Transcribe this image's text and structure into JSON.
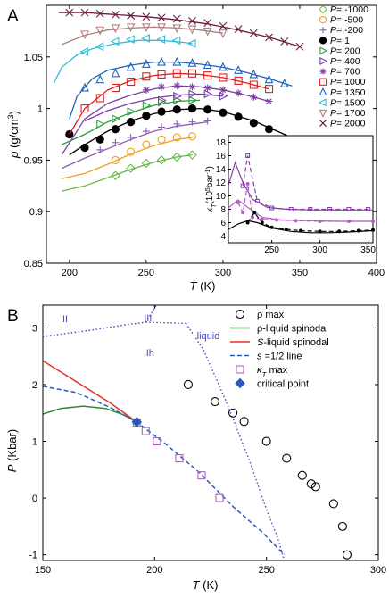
{
  "colors": {
    "axis": "#000000",
    "P_m1000": "#66bb44",
    "P_m500": "#f0a020",
    "P_m200": "#8a5db8",
    "P_1": "#000000",
    "P_200": "#2e9e3e",
    "P_400": "#7c3da8",
    "P_700": "#7b3fa0",
    "P_1000": "#e02020",
    "P_1350": "#1f64b8",
    "P_1500": "#33bfd6",
    "P_1700": "#b08080",
    "P_2000": "#6a1a40",
    "B_rhoSpinodal": "#2e8b2e",
    "B_SSpinodal": "#e8312a",
    "B_halfLine": "#2a5bb8",
    "B_kappa": "#b060c0",
    "B_critical": "#2a5bb8",
    "B_phase": "#4a4ab0",
    "inset_k1": "#000000",
    "inset_k2": "#b060c0",
    "inset_k3": "#8040a8"
  },
  "chart_data": [
    {
      "panel_label": "A",
      "type": "line",
      "xlabel": "T",
      "xunit": " (K)",
      "ylabel": "ρ",
      "yunit": " (g/cm",
      "yunit_sup": "3",
      "yunit_end": ")",
      "xlim": [
        185,
        400
      ],
      "ylim": [
        0.85,
        1.1
      ],
      "xticks": [
        200,
        250,
        300,
        350,
        400
      ],
      "yticks": [
        0.85,
        0.9,
        0.95,
        1,
        1.05
      ],
      "ytick_labels": [
        "0.85",
        "0.9",
        "0.95",
        "1",
        "1.05"
      ],
      "legend_position": "right",
      "series": [
        {
          "name": "P= -1000",
          "key": "P_m1000",
          "marker": "diamond",
          "x": [
            230,
            240,
            250,
            260,
            270,
            280
          ],
          "y": [
            0.935,
            0.942,
            0.947,
            0.95,
            0.953,
            0.955
          ],
          "line_x": [
            195,
            210,
            225,
            240,
            255,
            270,
            280
          ],
          "line_y": [
            0.92,
            0.925,
            0.933,
            0.941,
            0.948,
            0.953,
            0.955
          ]
        },
        {
          "name": "P= -500",
          "key": "P_m500",
          "marker": "circle-open",
          "x": [
            230,
            240,
            250,
            260,
            270,
            280
          ],
          "y": [
            0.95,
            0.958,
            0.965,
            0.97,
            0.972,
            0.973
          ],
          "line_x": [
            195,
            210,
            225,
            240,
            255,
            270,
            280
          ],
          "line_y": [
            0.932,
            0.937,
            0.946,
            0.956,
            0.964,
            0.97,
            0.972
          ]
        },
        {
          "name": "P= -200",
          "key": "P_m200",
          "marker": "plus",
          "x": [
            220,
            230,
            240,
            250,
            260,
            270,
            280,
            290
          ],
          "y": [
            0.96,
            0.967,
            0.972,
            0.978,
            0.982,
            0.985,
            0.987,
            0.988
          ],
          "line_x": [
            195,
            210,
            225,
            240,
            255,
            270,
            285,
            290
          ],
          "line_y": [
            0.942,
            0.952,
            0.961,
            0.97,
            0.978,
            0.983,
            0.986,
            0.987
          ]
        },
        {
          "name": "P= 1",
          "key": "P_1",
          "marker": "circle-filled",
          "x": [
            200,
            210,
            220,
            230,
            240,
            250,
            260,
            270,
            280,
            290,
            300,
            310,
            320,
            330
          ],
          "y": [
            0.975,
            0.962,
            0.97,
            0.98,
            0.987,
            0.993,
            0.997,
            0.999,
            1.0,
            0.999,
            0.996,
            0.992,
            0.986,
            0.98
          ],
          "line_x": [
            200,
            210,
            225,
            240,
            255,
            270,
            285,
            300,
            320,
            340,
            350
          ],
          "line_y": [
            0.955,
            0.965,
            0.978,
            0.988,
            0.995,
            0.999,
            1.0,
            0.997,
            0.988,
            0.975,
            0.968
          ]
        },
        {
          "name": "P= 200",
          "key": "P_200",
          "marker": "triangle-right",
          "x": [
            220,
            230,
            240,
            250,
            260,
            270,
            280
          ],
          "y": [
            0.985,
            0.99,
            0.997,
            1.003,
            1.006,
            1.008,
            1.008
          ],
          "line_x": [
            195,
            210,
            225,
            240,
            255,
            270,
            285
          ],
          "line_y": [
            0.965,
            0.975,
            0.987,
            0.996,
            1.003,
            1.007,
            1.008
          ]
        },
        {
          "name": "P= 400",
          "key": "P_400",
          "marker": "triangle-right",
          "x": [
            260,
            270,
            280,
            290,
            300
          ],
          "y": [
            1.008,
            1.012,
            1.014,
            1.014,
            1.012
          ],
          "line_x": [
            210,
            225,
            240,
            255,
            270,
            285,
            300
          ],
          "line_y": [
            0.988,
            0.998,
            1.005,
            1.01,
            1.013,
            1.014,
            1.012
          ]
        },
        {
          "name": "P= 700",
          "key": "P_700",
          "marker": "asterisk",
          "x": [
            250,
            260,
            270,
            280,
            290,
            300,
            310,
            320,
            330
          ],
          "y": [
            1.018,
            1.021,
            1.022,
            1.021,
            1.02,
            1.018,
            1.015,
            1.011,
            1.007
          ],
          "line_x": [
            195,
            210,
            225,
            240,
            255,
            270,
            285,
            300,
            315,
            330
          ],
          "line_y": [
            0.955,
            0.99,
            1.005,
            1.013,
            1.019,
            1.022,
            1.021,
            1.018,
            1.013,
            1.007
          ]
        },
        {
          "name": "P= 1000",
          "key": "P_1000",
          "marker": "square",
          "x": [
            210,
            220,
            230,
            240,
            250,
            260,
            270,
            280,
            290,
            300,
            310,
            320,
            330
          ],
          "y": [
            1.0,
            1.01,
            1.02,
            1.026,
            1.031,
            1.033,
            1.034,
            1.034,
            1.032,
            1.03,
            1.027,
            1.023,
            1.019
          ],
          "line_x": [
            200,
            210,
            225,
            240,
            255,
            270,
            285,
            300,
            315,
            330
          ],
          "line_y": [
            0.975,
            1.0,
            1.018,
            1.027,
            1.032,
            1.034,
            1.033,
            1.03,
            1.025,
            1.019
          ]
        },
        {
          "name": "P= 1350",
          "key": "P_1350",
          "marker": "triangle-up",
          "x": [
            210,
            220,
            230,
            240,
            250,
            260,
            270,
            280,
            290,
            300,
            310,
            320,
            330,
            340
          ],
          "y": [
            1.02,
            1.028,
            1.034,
            1.04,
            1.043,
            1.045,
            1.045,
            1.044,
            1.042,
            1.04,
            1.037,
            1.033,
            1.028,
            1.024
          ],
          "line_x": [
            200,
            205,
            215,
            225,
            240,
            255,
            270,
            285,
            300,
            315,
            330,
            345
          ],
          "line_y": [
            0.99,
            1.012,
            1.029,
            1.037,
            1.042,
            1.045,
            1.045,
            1.043,
            1.04,
            1.035,
            1.029,
            1.022
          ]
        },
        {
          "name": "P= 1500",
          "key": "P_1500",
          "marker": "triangle-left",
          "x": [
            210,
            220,
            230,
            240,
            250,
            260,
            270,
            280
          ],
          "y": [
            1.055,
            1.06,
            1.065,
            1.067,
            1.068,
            1.067,
            1.066,
            1.063
          ],
          "line_x": [
            190,
            195,
            205,
            215,
            230,
            245,
            260,
            275,
            280
          ],
          "line_y": [
            1.025,
            1.04,
            1.052,
            1.058,
            1.063,
            1.066,
            1.066,
            1.064,
            1.063
          ]
        },
        {
          "name": "P= 1700",
          "key": "P_1700",
          "marker": "triangle-down",
          "x": [
            210,
            220,
            230,
            240,
            250,
            260,
            270,
            280,
            290,
            300
          ],
          "y": [
            1.072,
            1.076,
            1.078,
            1.079,
            1.079,
            1.079,
            1.078,
            1.077,
            1.075,
            1.073
          ],
          "line_x": [
            195,
            210,
            225,
            240,
            255,
            270,
            285,
            300
          ],
          "line_y": [
            1.062,
            1.071,
            1.076,
            1.078,
            1.079,
            1.078,
            1.076,
            1.073
          ]
        },
        {
          "name": "P= 2000",
          "key": "P_2000",
          "marker": "cross",
          "x": [
            200,
            210,
            220,
            230,
            240,
            250,
            260,
            270,
            280,
            290,
            300,
            310,
            320,
            330,
            340,
            350
          ],
          "y": [
            1.093,
            1.093,
            1.092,
            1.091,
            1.09,
            1.089,
            1.088,
            1.087,
            1.085,
            1.083,
            1.08,
            1.077,
            1.073,
            1.069,
            1.065,
            1.06
          ],
          "line_x": [
            193,
            210,
            230,
            250,
            270,
            290,
            310,
            330,
            350
          ],
          "line_y": [
            1.093,
            1.093,
            1.091,
            1.089,
            1.086,
            1.082,
            1.076,
            1.069,
            1.06
          ]
        }
      ]
    },
    {
      "panel_label": "",
      "type": "line",
      "inset_of": "A",
      "ylabel": "κ",
      "ylabel_sub": "T",
      "yunit": "(10",
      "yunit_sup": "5",
      "yunit_end": "bar",
      "yunit_sup2": "-1",
      "yunit_close": ")",
      "xlim": [
        205,
        355
      ],
      "ylim": [
        3,
        19
      ],
      "xticks": [
        250,
        300,
        350
      ],
      "yticks": [
        4,
        6,
        8,
        10,
        12,
        14,
        16,
        18
      ],
      "series": [
        {
          "key": "inset_k3",
          "line_style": "dashed",
          "marker": "square-small",
          "x": [
            220,
            225,
            235,
            250,
            270,
            290,
            310,
            330,
            350
          ],
          "y": [
            11.5,
            16.0,
            9.2,
            8.2,
            8.0,
            8.0,
            8.0,
            8.0,
            8.0
          ]
        },
        {
          "key": "inset_k3",
          "line_style": "solid",
          "marker": "none",
          "x": [
            205,
            212,
            220,
            230,
            245,
            265,
            290,
            320,
            355
          ],
          "y": [
            11.5,
            15.0,
            12.0,
            9.5,
            8.3,
            8.0,
            7.9,
            7.9,
            7.9
          ]
        },
        {
          "key": "inset_k2",
          "line_style": "dashed",
          "marker": "circle-small",
          "x": [
            215,
            220,
            225,
            230,
            240,
            255,
            275,
            300,
            330,
            355
          ],
          "y": [
            9.0,
            7.5,
            11.8,
            6.8,
            6.5,
            6.4,
            6.3,
            6.2,
            6.2,
            6.2
          ]
        },
        {
          "key": "inset_k2",
          "line_style": "solid",
          "marker": "none",
          "x": [
            205,
            215,
            225,
            240,
            260,
            290,
            320,
            355
          ],
          "y": [
            8.2,
            9.4,
            8.3,
            6.8,
            6.4,
            6.3,
            6.2,
            6.2
          ]
        },
        {
          "key": "inset_k1",
          "line_style": "dashed",
          "marker": "circle-small",
          "x": [
            225,
            232,
            240,
            250,
            265,
            280,
            300,
            320,
            340,
            355
          ],
          "y": [
            6.0,
            7.5,
            6.0,
            5.3,
            5.0,
            4.8,
            4.7,
            4.7,
            4.8,
            4.9
          ],
          "filled": true
        },
        {
          "key": "inset_k1",
          "line_style": "solid",
          "marker": "none",
          "x": [
            205,
            215,
            225,
            235,
            250,
            270,
            290,
            310,
            330,
            355
          ],
          "y": [
            5.0,
            5.8,
            6.3,
            6.0,
            5.2,
            4.7,
            4.5,
            4.5,
            4.6,
            4.8
          ]
        }
      ]
    },
    {
      "panel_label": "B",
      "type": "line",
      "xlabel": "T",
      "xunit": " (K)",
      "ylabel": "P",
      "yunit": " (Kbar)",
      "xlim": [
        150,
        300
      ],
      "ylim": [
        -1.1,
        3.4
      ],
      "xticks": [
        150,
        200,
        250,
        300
      ],
      "yticks": [
        -1,
        0,
        1,
        2,
        3
      ],
      "legend_position": "right",
      "phase_labels": [
        "II",
        "III",
        "Ih",
        "liquid"
      ],
      "phase_boundaries": [
        {
          "x": [
            150,
            170,
            188,
            196
          ],
          "y": [
            2.85,
            2.95,
            3.06,
            3.1
          ]
        },
        {
          "x": [
            196,
            204,
            215
          ],
          "y": [
            3.1,
            3.6,
            3.4
          ]
        },
        {
          "x": [
            196,
            214
          ],
          "y": [
            3.1,
            3.08
          ]
        },
        {
          "x": [
            214,
            222,
            232,
            242,
            250,
            255,
            258
          ],
          "y": [
            3.08,
            2.6,
            1.7,
            0.7,
            -0.2,
            -0.7,
            -1.1
          ]
        }
      ],
      "series": [
        {
          "name": "ρ max",
          "key": "B_rho_max",
          "marker": "circle-open",
          "x": [
            215,
            227,
            235,
            240,
            250,
            259,
            266,
            270,
            272,
            280,
            284,
            286
          ],
          "y": [
            2.0,
            1.7,
            1.5,
            1.35,
            1.0,
            0.7,
            0.4,
            0.25,
            0.2,
            -0.1,
            -0.5,
            -1.0
          ]
        },
        {
          "name": "ρ-liquid spinodal",
          "key": "B_rhoSpinodal",
          "marker": "none",
          "x": [
            150,
            158,
            168,
            178,
            186,
            192
          ],
          "y": [
            1.48,
            1.58,
            1.62,
            1.58,
            1.47,
            1.34
          ]
        },
        {
          "name": "S-liquid spinodal",
          "prefix": "S",
          "suffix": "-liquid spinodal",
          "key": "B_SSpinodal",
          "marker": "none",
          "x": [
            150,
            165,
            180,
            192
          ],
          "y": [
            2.42,
            2.05,
            1.68,
            1.34
          ]
        },
        {
          "name": "s =1/2 line",
          "prefix": "s",
          "suffix": " =1/2 line",
          "key": "B_halfLine",
          "marker": "none",
          "line_style": "dashed",
          "x": [
            150,
            165,
            180,
            192,
            205,
            220,
            235,
            248,
            258
          ],
          "y": [
            1.97,
            1.86,
            1.6,
            1.34,
            0.95,
            0.45,
            -0.15,
            -0.6,
            -1.0
          ]
        },
        {
          "name": "κT max",
          "prefix": "κ",
          "sub": "T",
          "suffix": " max",
          "key": "B_kappa",
          "marker": "square",
          "x": [
            192,
            196,
            201,
            211,
            221,
            229
          ],
          "y": [
            1.33,
            1.18,
            1.0,
            0.7,
            0.4,
            0.0
          ]
        },
        {
          "name": "critical point",
          "key": "B_critical",
          "marker": "diamond-filled",
          "x": [
            192
          ],
          "y": [
            1.34
          ]
        }
      ]
    }
  ]
}
